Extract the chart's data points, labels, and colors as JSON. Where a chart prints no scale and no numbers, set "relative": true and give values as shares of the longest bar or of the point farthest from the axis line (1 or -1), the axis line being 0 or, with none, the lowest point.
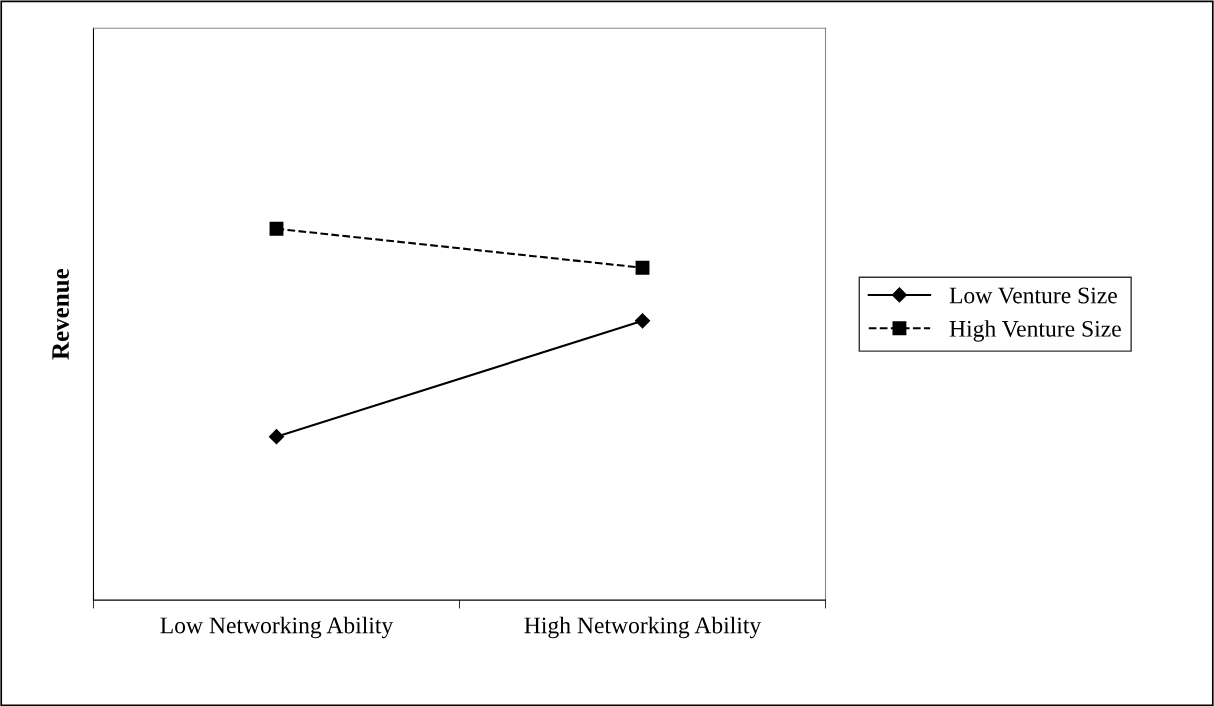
{
  "chart_data": {
    "type": "line",
    "ylabel": "Revenue",
    "categories": [
      "Low Networking Ability",
      "High Networking Ability"
    ],
    "relative": true,
    "legend": "right",
    "grid": false,
    "series": [
      {
        "name": "Low Venture Size",
        "color": "#000000",
        "values": [
          0.44,
          0.752
        ],
        "marker": "diamond",
        "line_style": "solid"
      },
      {
        "name": "High Venture Size",
        "color": "#000000",
        "values": [
          1,
          0.895
        ],
        "marker": "square",
        "line_style": "dashed"
      }
    ]
  }
}
